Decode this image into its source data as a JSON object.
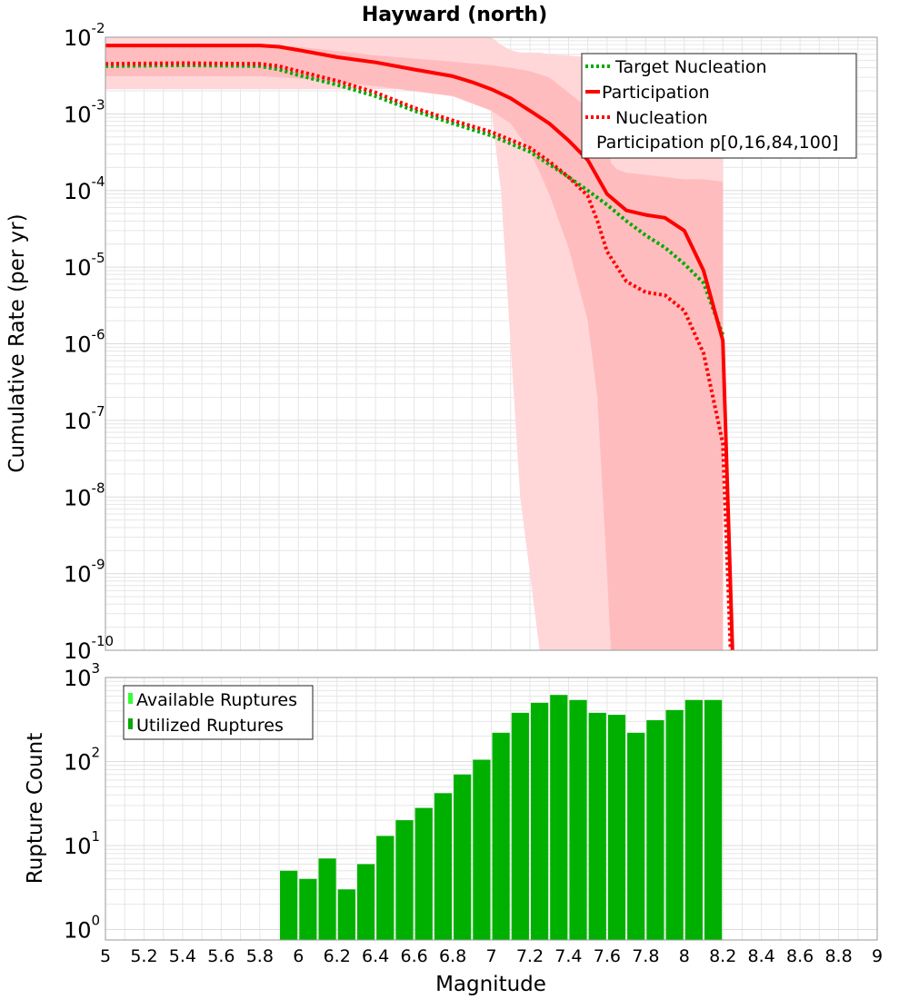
{
  "title": "Hayward (north)",
  "colors": {
    "participation": "#ff0000",
    "nucleation": "#ff0000",
    "target": "#00aa00",
    "band_outer": "#ffd7d9",
    "band_inner": "#ffbcbe",
    "bar_fill": "#00b000",
    "legend_available": "#33ff33",
    "legend_utilized": "#00aa00",
    "grid": "#e6e6e6"
  },
  "chart_data": [
    {
      "type": "line",
      "title": "Hayward (north)",
      "xlabel": "",
      "ylabel": "Cumulative Rate (per yr)",
      "xlim": [
        5,
        9
      ],
      "ylim": [
        1e-10,
        0.01
      ],
      "yscale": "log",
      "grid": true,
      "legend_position": "top-right",
      "y_tick_exponents": [
        "-10",
        "-9",
        "-8",
        "-7",
        "-6",
        "-5",
        "-4",
        "-3",
        "-2"
      ],
      "legend": [
        "Target Nucleation",
        "Participation",
        "Nucleation",
        "Participation p[0,16,84,100]"
      ],
      "series": [
        {
          "name": "Target Nucleation",
          "style": "dotted",
          "color": "#00aa00",
          "x": [
            5.0,
            5.4,
            5.8,
            5.9,
            6.0,
            6.2,
            6.4,
            6.6,
            6.8,
            7.0,
            7.2,
            7.3,
            7.4,
            7.5,
            7.6,
            7.7,
            7.8,
            7.9,
            8.0,
            8.1,
            8.2
          ],
          "y": [
            0.0042,
            0.0043,
            0.0042,
            0.0038,
            0.0032,
            0.0024,
            0.0017,
            0.0011,
            0.00075,
            0.00052,
            0.00032,
            0.00022,
            0.00015,
            0.0001,
            6.5e-05,
            4e-05,
            2.6e-05,
            1.8e-05,
            1.1e-05,
            6.2e-06,
            1.3e-06
          ]
        },
        {
          "name": "Participation",
          "style": "solid",
          "color": "#ff0000",
          "x": [
            5.0,
            5.4,
            5.8,
            5.9,
            6.0,
            6.2,
            6.4,
            6.6,
            6.8,
            6.9,
            7.0,
            7.1,
            7.2,
            7.3,
            7.4,
            7.5,
            7.6,
            7.7,
            7.8,
            7.9,
            8.0,
            8.1,
            8.2,
            8.25
          ],
          "y": [
            0.0078,
            0.0078,
            0.0078,
            0.0075,
            0.0068,
            0.0055,
            0.0047,
            0.0038,
            0.0031,
            0.0026,
            0.0021,
            0.0016,
            0.0011,
            0.00075,
            0.00045,
            0.00025,
            9e-05,
            5.5e-05,
            4.8e-05,
            4.4e-05,
            3e-05,
            9e-06,
            1.1e-06,
            1e-10
          ]
        },
        {
          "name": "Nucleation",
          "style": "dotted",
          "color": "#ff0000",
          "x": [
            5.0,
            5.4,
            5.8,
            5.9,
            6.0,
            6.2,
            6.4,
            6.6,
            6.8,
            7.0,
            7.2,
            7.3,
            7.4,
            7.5,
            7.55,
            7.6,
            7.7,
            7.8,
            7.9,
            8.0,
            8.1,
            8.2,
            8.24
          ],
          "y": [
            0.0045,
            0.0046,
            0.0045,
            0.0042,
            0.0036,
            0.0027,
            0.0019,
            0.0012,
            0.00082,
            0.00058,
            0.00036,
            0.00024,
            0.00015,
            8.5e-05,
            4e-05,
            1.6e-05,
            6.5e-06,
            4.7e-06,
            4.3e-06,
            2.7e-06,
            7.5e-07,
            5e-08,
            1e-10
          ]
        }
      ],
      "bands": [
        {
          "name": "p0-p100",
          "x": [
            5.0,
            5.4,
            5.8,
            6.0,
            6.4,
            6.8,
            6.9,
            7.0,
            7.05,
            7.1,
            7.15,
            7.2,
            7.25,
            7.3,
            7.4,
            7.5,
            7.6,
            7.7,
            7.8,
            7.9,
            8.0,
            8.1,
            8.2
          ],
          "upper": [
            0.0105,
            0.0105,
            0.0105,
            0.0105,
            0.0105,
            0.0105,
            0.0105,
            0.0105,
            0.008,
            0.0068,
            0.0063,
            0.0063,
            0.0063,
            0.006,
            0.0058,
            0.0055,
            0.0053,
            0.0053,
            0.0053,
            0.0053,
            0.0053,
            0.0053,
            0.0053
          ],
          "lower": [
            0.0021,
            0.0021,
            0.0021,
            0.0021,
            0.0021,
            0.0021,
            0.0021,
            0.0011,
            0.0001,
            1e-06,
            1e-08,
            1e-09,
            1e-10,
            1e-10,
            1e-10,
            1e-10,
            1e-10,
            1e-10,
            1e-10,
            1e-10,
            1e-10,
            1e-10,
            1e-10
          ]
        },
        {
          "name": "p16-p84",
          "x": [
            5.0,
            5.4,
            5.8,
            6.0,
            6.4,
            6.8,
            7.0,
            7.1,
            7.2,
            7.3,
            7.4,
            7.5,
            7.55,
            7.6,
            7.62,
            7.65,
            7.7,
            7.8,
            7.9,
            8.0,
            8.1,
            8.2
          ],
          "upper": [
            0.0078,
            0.0078,
            0.0078,
            0.0075,
            0.0058,
            0.0048,
            0.0043,
            0.004,
            0.0036,
            0.003,
            0.0019,
            0.0012,
            0.00075,
            0.0004,
            0.00023,
            0.00019,
            0.00017,
            0.00016,
            0.00015,
            0.00014,
            0.00014,
            0.00013
          ],
          "lower": [
            0.0031,
            0.0031,
            0.0031,
            0.0029,
            0.0023,
            0.0017,
            0.0011,
            0.00075,
            0.00033,
            9e-05,
            1.8e-05,
            2e-06,
            2e-07,
            1e-09,
            1e-10,
            1e-10,
            1e-10,
            1e-10,
            1e-10,
            1e-10,
            1e-10,
            1e-10
          ]
        }
      ]
    },
    {
      "type": "bar",
      "xlabel": "Magnitude",
      "ylabel": "Rupture Count",
      "xlim": [
        5,
        9
      ],
      "ylim": [
        0.75,
        1000
      ],
      "yscale": "log",
      "grid": true,
      "legend_position": "top-left",
      "y_tick_exponents": [
        "0",
        "1",
        "2",
        "3"
      ],
      "x_ticks": [
        "5",
        "5.2",
        "5.4",
        "5.6",
        "5.8",
        "6",
        "6.2",
        "6.4",
        "6.6",
        "6.8",
        "7",
        "7.2",
        "7.4",
        "7.6",
        "7.8",
        "8",
        "8.2",
        "8.4",
        "8.6",
        "8.8",
        "9"
      ],
      "legend": [
        "Available Ruptures",
        "Utilized Ruptures"
      ],
      "categories": [
        5.95,
        6.05,
        6.15,
        6.25,
        6.35,
        6.45,
        6.55,
        6.65,
        6.75,
        6.85,
        6.95,
        7.05,
        7.15,
        7.25,
        7.35,
        7.45,
        7.55,
        7.65,
        7.75,
        7.85,
        7.95,
        8.05,
        8.15
      ],
      "values": [
        5,
        4,
        7,
        3,
        6,
        13,
        20,
        28,
        42,
        70,
        105,
        220,
        380,
        500,
        620,
        540,
        380,
        360,
        220,
        310,
        410,
        540,
        540
      ]
    }
  ]
}
